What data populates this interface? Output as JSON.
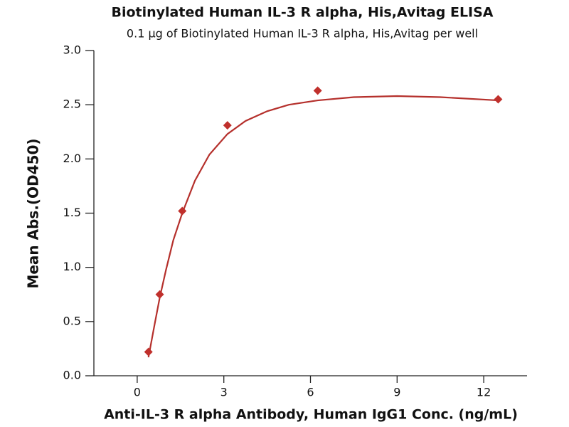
{
  "chart_data": {
    "type": "scatter",
    "title": "Biotinylated Human IL-3 R alpha, His,Avitag ELISA",
    "subtitle": "0.1 µg of Biotinylated Human IL-3 R alpha, His,Avitag per well",
    "x_label": "Anti-IL-3 R alpha Antibody, Human IgG1 Conc. (ng/mL)",
    "y_label": "Mean Abs.(OD450)",
    "xlim": [
      -1.5,
      13.5
    ],
    "xticks": [
      0,
      3,
      6,
      9,
      12
    ],
    "ylim": [
      0,
      3
    ],
    "yticks": [
      {
        "value": 0,
        "label": "0.0"
      },
      0.5,
      {
        "value": 1,
        "label": "1.0"
      },
      1.5,
      {
        "value": 2,
        "label": "2.0"
      },
      2.5,
      {
        "value": 3,
        "label": "3.0"
      }
    ],
    "series": [
      {
        "type": "scatter",
        "color": "#c0302c",
        "x": [
          0.39,
          0.78,
          1.56,
          3.125,
          6.25,
          12.5
        ],
        "values": [
          0.22,
          0.75,
          1.52,
          2.31,
          2.63,
          2.55
        ]
      },
      {
        "type": "line",
        "color": "#b5302c",
        "x": [
          0.39,
          0.6,
          0.78,
          1.0,
          1.25,
          1.56,
          2.0,
          2.5,
          3.125,
          3.75,
          4.5,
          5.25,
          6.25,
          7.5,
          9,
          10.5,
          12.5
        ],
        "values": [
          0.17,
          0.47,
          0.72,
          0.98,
          1.25,
          1.5,
          1.8,
          2.04,
          2.23,
          2.35,
          2.44,
          2.5,
          2.54,
          2.57,
          2.58,
          2.57,
          2.54
        ]
      }
    ]
  }
}
